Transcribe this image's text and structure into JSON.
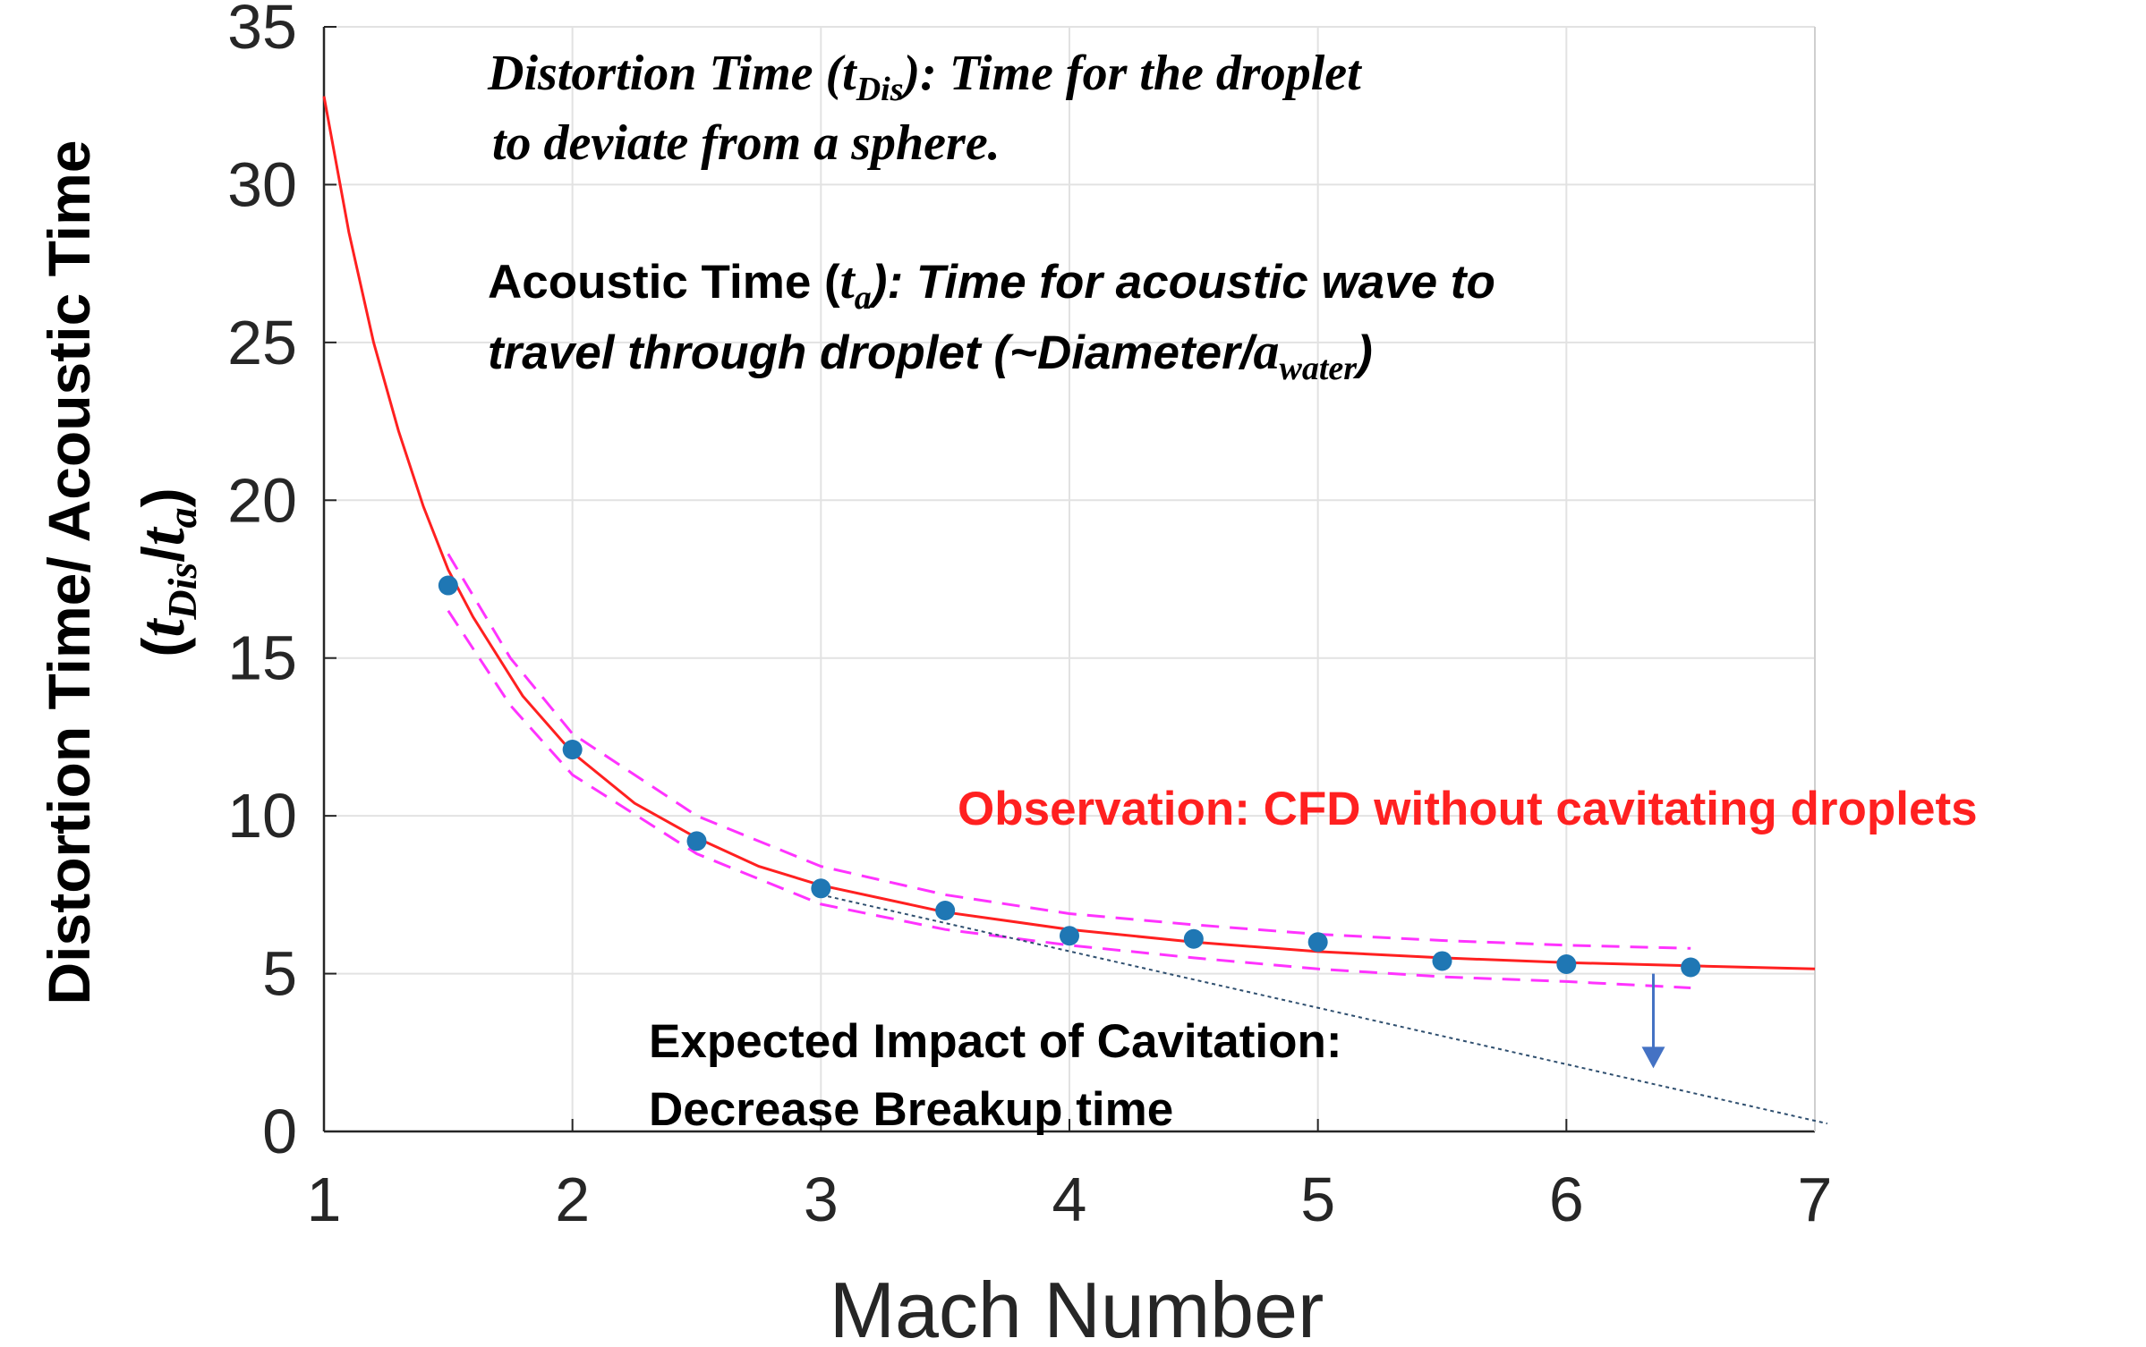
{
  "chart_data": {
    "type": "scatter",
    "xlabel": "Mach Number",
    "ylabel": "Distortion Time/ Acoustic Time",
    "ylabel_sub": "(t_Dis/t_a)",
    "xlim": [
      1,
      7
    ],
    "ylim": [
      0,
      35
    ],
    "xticks": [
      "1",
      "2",
      "3",
      "4",
      "5",
      "6",
      "7"
    ],
    "yticks": [
      "0",
      "5",
      "10",
      "15",
      "20",
      "25",
      "30",
      "35"
    ],
    "grid": true,
    "colors": {
      "points": "#1f77b4",
      "fit": "#ff2020",
      "bounds": "#ff33ff",
      "trend": "#2f4f6f",
      "arrow": "#4472c4",
      "observation": "#ff2020"
    },
    "series": [
      {
        "kind": "points",
        "x": [
          1.5,
          2.0,
          2.5,
          3.0,
          3.5,
          4.0,
          4.5,
          5.0,
          5.5,
          6.0,
          6.5
        ],
        "y": [
          17.3,
          12.1,
          9.2,
          7.7,
          7.0,
          6.2,
          6.1,
          6.0,
          5.4,
          5.3,
          5.2
        ]
      },
      {
        "kind": "fit-curve",
        "x": [
          1.0,
          1.1,
          1.2,
          1.3,
          1.4,
          1.5,
          1.6,
          1.8,
          2.0,
          2.25,
          2.5,
          2.75,
          3.0,
          3.5,
          4.0,
          4.5,
          5.0,
          5.5,
          6.0,
          6.5,
          7.0
        ],
        "y": [
          32.8,
          28.5,
          25.0,
          22.2,
          19.8,
          17.8,
          16.3,
          13.8,
          12.0,
          10.4,
          9.3,
          8.4,
          7.8,
          6.95,
          6.4,
          6.0,
          5.7,
          5.5,
          5.35,
          5.25,
          5.15
        ]
      },
      {
        "kind": "upper-bound",
        "x": [
          1.5,
          1.75,
          2.0,
          2.5,
          3.0,
          3.5,
          4.0,
          4.5,
          5.0,
          5.5,
          6.0,
          6.5
        ],
        "y": [
          18.3,
          15.0,
          12.6,
          10.0,
          8.4,
          7.5,
          6.9,
          6.55,
          6.25,
          6.05,
          5.9,
          5.8
        ]
      },
      {
        "kind": "lower-bound",
        "x": [
          1.5,
          1.75,
          2.0,
          2.5,
          3.0,
          3.5,
          4.0,
          4.5,
          5.0,
          5.5,
          6.0,
          6.5
        ],
        "y": [
          16.5,
          13.5,
          11.3,
          8.8,
          7.2,
          6.4,
          5.9,
          5.5,
          5.15,
          4.9,
          4.75,
          4.55
        ]
      },
      {
        "kind": "cavitation-trend",
        "x": [
          3.0,
          7.05
        ],
        "y": [
          7.5,
          0.25
        ]
      }
    ],
    "arrow": {
      "x": 6.35,
      "y_from": 5.0,
      "y_to": 2.0
    },
    "annotations": {
      "distortion_line1_a": "Distortion Time (",
      "distortion_sym": "t",
      "distortion_sub": "Dis",
      "distortion_line1_b": "): Time for the droplet",
      "distortion_line2": "to deviate from a sphere.",
      "acoustic_line1_a": "Acoustic Time (",
      "acoustic_sym": "t",
      "acoustic_sub": "a",
      "acoustic_line1_b": "): Time for acoustic wave to",
      "acoustic_line2_a": "travel through droplet (~Diameter/",
      "acoustic_line2_sym": "a",
      "acoustic_line2_sub": "water",
      "acoustic_line2_b": ")",
      "observation": "Observation: CFD without cavitating droplets",
      "expected_line1": "Expected Impact of Cavitation:",
      "expected_line2": "Decrease Breakup time"
    }
  }
}
